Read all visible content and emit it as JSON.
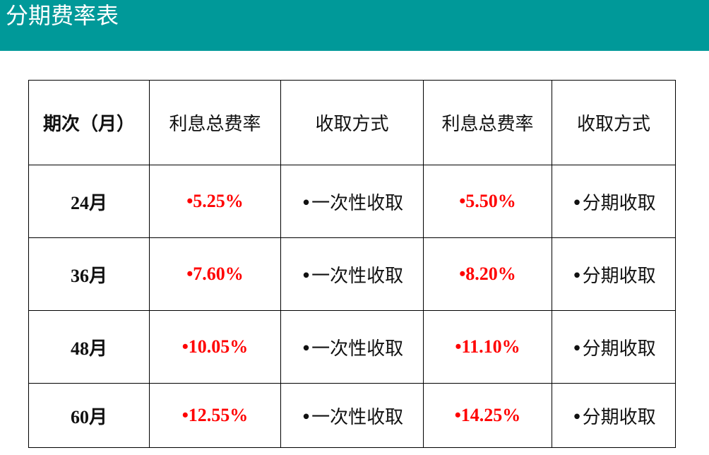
{
  "title": "分期费率表",
  "colors": {
    "banner": "#009999",
    "rate": "#ff0000"
  },
  "table": {
    "headers": [
      "期次（月）",
      "利息总费率",
      "收取方式",
      "利息总费率",
      "收取方式"
    ],
    "rows": [
      {
        "term": "24月",
        "rate1": "•5.25%",
        "method1": "•一次性收取",
        "rate2": "•5.50%",
        "method2": "•分期收取"
      },
      {
        "term": "36月",
        "rate1": "•7.60%",
        "method1": "•一次性收取",
        "rate2": "•8.20%",
        "method2": "•分期收取"
      },
      {
        "term": "48月",
        "rate1": "•10.05%",
        "method1": "•一次性收取",
        "rate2": "•11.10%",
        "method2": "•分期收取"
      },
      {
        "term": "60月",
        "rate1": "•12.55%",
        "method1": "•一次性收取",
        "rate2": "•14.25%",
        "method2": "•分期收取"
      }
    ]
  }
}
